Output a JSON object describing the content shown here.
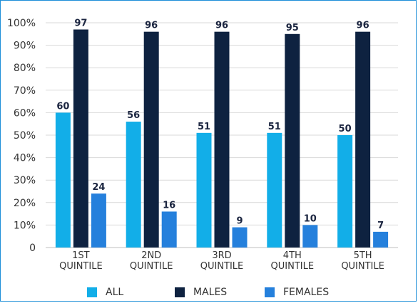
{
  "chart_data": {
    "type": "bar",
    "categories": [
      [
        "1ST",
        "QUINTILE"
      ],
      [
        "2ND",
        "QUINTILE"
      ],
      [
        "3RD",
        "QUINTILE"
      ],
      [
        "4TH",
        "QUINTILE"
      ],
      [
        "5TH",
        "QUINTILE"
      ]
    ],
    "series": [
      {
        "name": "ALL",
        "color": "#12aee8",
        "values": [
          60,
          56,
          51,
          51,
          50
        ]
      },
      {
        "name": "MALES",
        "color": "#0e2240",
        "values": [
          97,
          96,
          96,
          95,
          96
        ]
      },
      {
        "name": "FEMALES",
        "color": "#2580dc",
        "values": [
          24,
          16,
          9,
          10,
          7
        ]
      }
    ],
    "ylim": [
      0,
      100
    ],
    "yticks": [
      "0",
      "10%",
      "20%",
      "30%",
      "40%",
      "50%",
      "60%",
      "70%",
      "80%",
      "90%",
      "100%"
    ],
    "grid": true,
    "legend_position": "bottom",
    "data_labels": true
  }
}
